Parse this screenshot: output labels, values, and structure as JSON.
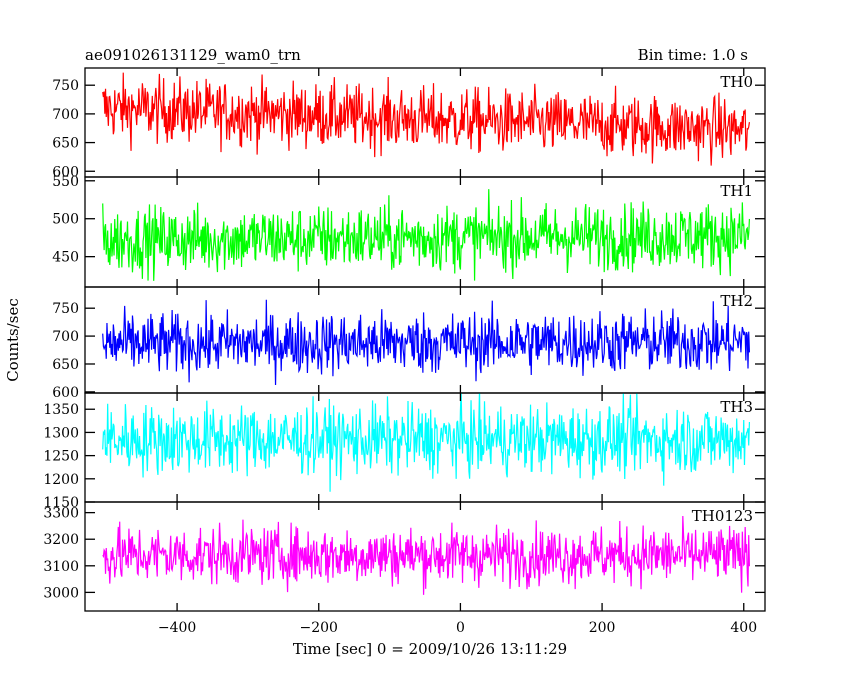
{
  "header": {
    "title": "ae091026131129_wam0_trn",
    "bin_time": "Bin time: 1.0 s"
  },
  "chart_data": {
    "type": "line",
    "title": "ae091026131129_wam0_trn",
    "xlabel": "Time [sec] 0 = 2009/10/26 13:11:29",
    "ylabel": "Counts/sec",
    "xlim": [
      -530,
      430
    ],
    "x_ticks": [
      -400,
      -200,
      0,
      200,
      400
    ],
    "x_tick_labels": [
      "−400",
      "−200",
      "0",
      "200",
      "400"
    ],
    "x_data_range": [
      -505,
      408
    ],
    "bin_time_sec": 1.0,
    "panels": [
      {
        "name": "TH0",
        "color": "#ff0000",
        "ylim": [
          590,
          780
        ],
        "y_ticks": [
          600,
          650,
          700,
          750
        ],
        "y_tick_labels": [
          "600",
          "650",
          "700",
          "750"
        ],
        "trend": [
          [
            -505,
            710
          ],
          [
            408,
            672
          ]
        ],
        "noise": 28
      },
      {
        "name": "TH1",
        "color": "#00ff00",
        "ylim": [
          410,
          555
        ],
        "y_ticks": [
          450,
          500,
          550
        ],
        "y_tick_labels": [
          "450",
          "500",
          "550"
        ],
        "trend": [
          [
            -505,
            472
          ],
          [
            408,
            478
          ]
        ],
        "noise": 22
      },
      {
        "name": "TH2",
        "color": "#0000ff",
        "ylim": [
          598,
          788
        ],
        "y_ticks": [
          600,
          650,
          700,
          750
        ],
        "y_tick_labels": [
          "600",
          "650",
          "700",
          "750"
        ],
        "trend": [
          [
            -505,
            686
          ],
          [
            408,
            690
          ]
        ],
        "noise": 28
      },
      {
        "name": "TH3",
        "color": "#00ffff",
        "ylim": [
          1150,
          1385
        ],
        "y_ticks": [
          1150,
          1200,
          1250,
          1300,
          1350
        ],
        "y_tick_labels": [
          "1150",
          "1200",
          "1250",
          "1300",
          "1350"
        ],
        "trend": [
          [
            -505,
            1285
          ],
          [
            408,
            1285
          ]
        ],
        "noise": 38
      },
      {
        "name": "TH0123",
        "color": "#ff00ff",
        "ylim": [
          2930,
          3340
        ],
        "y_ticks": [
          3000,
          3100,
          3200,
          3300
        ],
        "y_tick_labels": [
          "3000",
          "3100",
          "3200",
          "3300"
        ],
        "trend": [
          [
            -505,
            3140
          ],
          [
            408,
            3140
          ]
        ],
        "noise": 55
      }
    ]
  }
}
